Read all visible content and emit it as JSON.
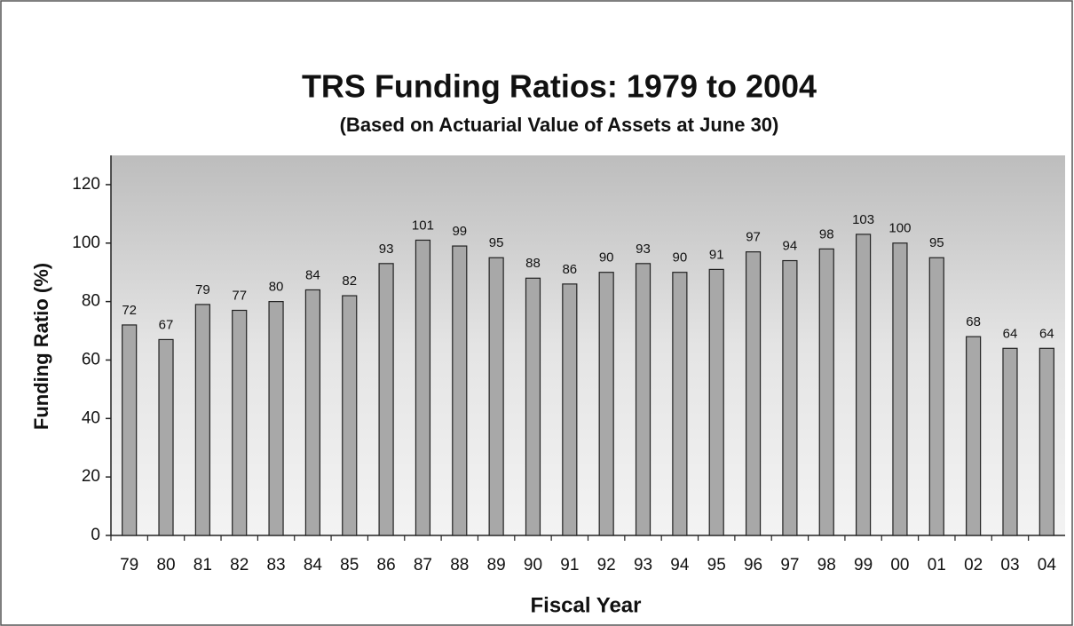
{
  "chart_data": {
    "type": "bar",
    "title": "TRS Funding Ratios: 1979 to 2004",
    "subtitle": "(Based on Actuarial Value of Assets at June 30)",
    "x_label": "Fiscal Year",
    "y_label": "Funding Ratio (%)",
    "categories": [
      "79",
      "80",
      "81",
      "82",
      "83",
      "84",
      "85",
      "86",
      "87",
      "88",
      "89",
      "90",
      "91",
      "92",
      "93",
      "94",
      "95",
      "96",
      "97",
      "98",
      "99",
      "00",
      "01",
      "02",
      "03",
      "04"
    ],
    "values": [
      72,
      67,
      79,
      77,
      80,
      84,
      82,
      93,
      101,
      99,
      95,
      88,
      86,
      90,
      93,
      90,
      91,
      97,
      94,
      98,
      103,
      100,
      95,
      68,
      64,
      64
    ],
    "color": "#a8a8a8",
    "ylim": [
      0,
      130
    ],
    "yticks": [
      0,
      20,
      40,
      60,
      80,
      100,
      120
    ]
  }
}
